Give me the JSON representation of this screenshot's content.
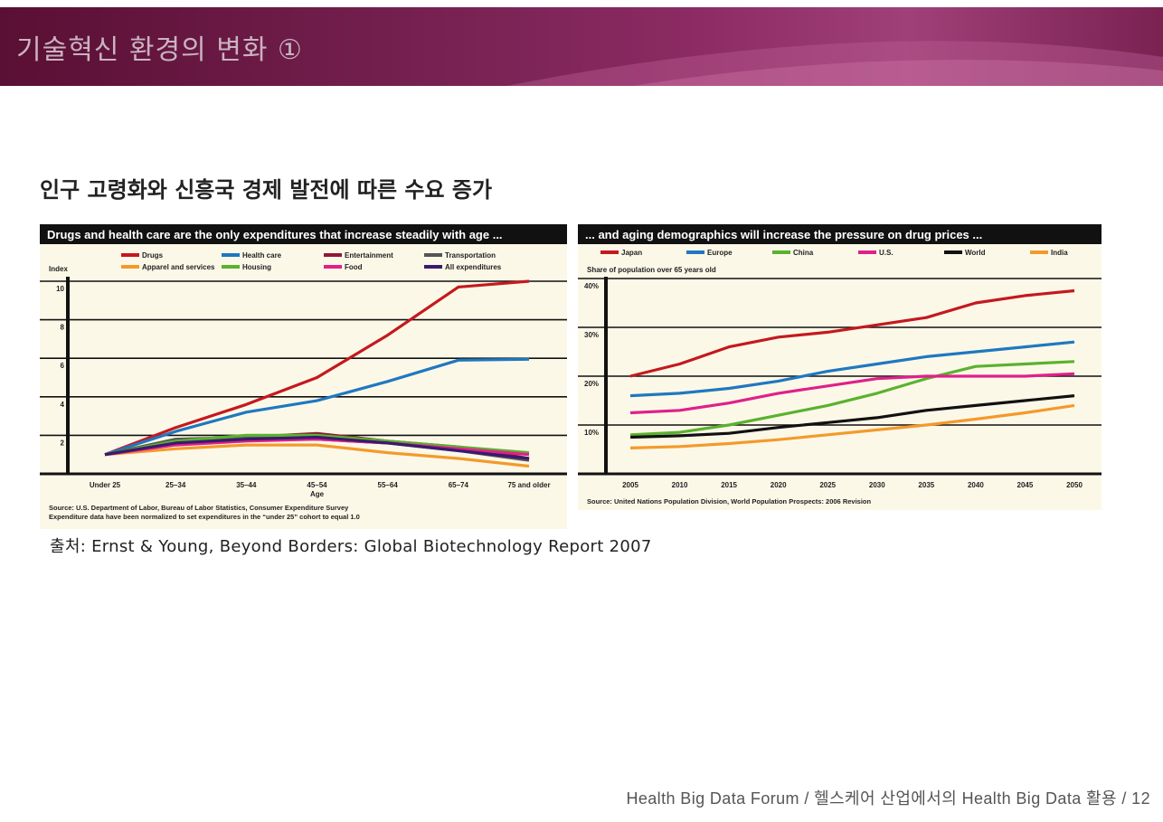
{
  "slide": {
    "title": "기술혁신 환경의 변화 ①",
    "heading": "인구 고령화와 신흥국 경제 발전에 따른 수요 증가",
    "source": "출처: Ernst & Young, Beyond Borders: Global Biotechnology Report 2007",
    "footer": "Health Big Data Forum / 헬스케어 산업에서의 Health Big Data 활용 / 12"
  },
  "colors": {
    "banner_dark": "#5a0f34",
    "banner_light": "#a04079",
    "chart_bg": "#fcf8e8",
    "chart_header_bg": "#111111"
  },
  "chart_data": [
    {
      "type": "line",
      "title": "Drugs and health care are the only expenditures that increase steadily with age ...",
      "ylabel": "Index",
      "xlabel": "Age",
      "categories": [
        "Under 25",
        "25–34",
        "35–44",
        "45–54",
        "55–64",
        "65–74",
        "75 and older"
      ],
      "yticks": [
        2,
        4,
        6,
        8,
        10
      ],
      "ylim": [
        0,
        10
      ],
      "grid": true,
      "legend_position": "top",
      "series": [
        {
          "name": "Drugs",
          "color": "#c4191e",
          "values": [
            1.0,
            2.4,
            3.6,
            5.0,
            7.2,
            9.7,
            10.0
          ]
        },
        {
          "name": "Health care",
          "color": "#1f78c0",
          "values": [
            1.0,
            2.2,
            3.2,
            3.8,
            4.8,
            5.9,
            5.95
          ]
        },
        {
          "name": "Entertainment",
          "color": "#8b1a35",
          "values": [
            1.0,
            1.6,
            1.9,
            2.1,
            1.7,
            1.4,
            0.8
          ]
        },
        {
          "name": "Transportation",
          "color": "#555555",
          "values": [
            1.0,
            1.8,
            1.9,
            1.8,
            1.6,
            1.2,
            0.7
          ]
        },
        {
          "name": "Apparel and services",
          "color": "#f39a2b",
          "values": [
            1.0,
            1.3,
            1.5,
            1.5,
            1.1,
            0.8,
            0.4
          ]
        },
        {
          "name": "Housing",
          "color": "#5ab22e",
          "values": [
            1.0,
            1.7,
            2.0,
            2.0,
            1.7,
            1.4,
            1.1
          ]
        },
        {
          "name": "Food",
          "color": "#e0208a",
          "values": [
            1.0,
            1.5,
            1.7,
            1.8,
            1.6,
            1.3,
            1.0
          ]
        },
        {
          "name": "All expenditures",
          "color": "#3a1a6e",
          "values": [
            1.0,
            1.6,
            1.8,
            1.9,
            1.6,
            1.2,
            0.8
          ]
        }
      ],
      "notes": [
        "Source: U.S. Department of Labor, Bureau of Labor Statistics, Consumer Expenditure Survey",
        "Expenditure data have been normalized to set expenditures in the “under 25” cohort to equal 1.0"
      ]
    },
    {
      "type": "line",
      "title": "... and aging demographics will increase the pressure on drug prices ...",
      "ylabel": "Share of population over 65 years old",
      "categories": [
        "2005",
        "2010",
        "2015",
        "2020",
        "2025",
        "2030",
        "2035",
        "2040",
        "2045",
        "2050"
      ],
      "yticks": [
        "10%",
        "20%",
        "30%",
        "40%"
      ],
      "ylim": [
        0,
        40
      ],
      "grid": true,
      "legend_position": "top",
      "series": [
        {
          "name": "Japan",
          "color": "#c4191e",
          "values": [
            20,
            22.5,
            26,
            28,
            29,
            30.5,
            32,
            35,
            36.5,
            37.5
          ]
        },
        {
          "name": "Europe",
          "color": "#1f78c0",
          "values": [
            16,
            16.5,
            17.5,
            19,
            21,
            22.5,
            24,
            25,
            26,
            27
          ]
        },
        {
          "name": "China",
          "color": "#5ab22e",
          "values": [
            8,
            8.5,
            10,
            12,
            14,
            16.5,
            19.5,
            22,
            22.5,
            23
          ]
        },
        {
          "name": "U.S.",
          "color": "#e0208a",
          "values": [
            12.5,
            13,
            14.5,
            16.5,
            18,
            19.5,
            20,
            20,
            20,
            20.5
          ]
        },
        {
          "name": "World",
          "color": "#111111",
          "values": [
            7.5,
            7.8,
            8.3,
            9.5,
            10.5,
            11.5,
            13,
            14,
            15,
            16
          ]
        },
        {
          "name": "India",
          "color": "#f39a2b",
          "values": [
            5.3,
            5.6,
            6.2,
            7,
            8,
            9,
            10,
            11.2,
            12.5,
            14
          ]
        }
      ],
      "notes": [
        "Source: United Nations Population Division, World Population Prospects: 2006 Revision"
      ]
    }
  ]
}
